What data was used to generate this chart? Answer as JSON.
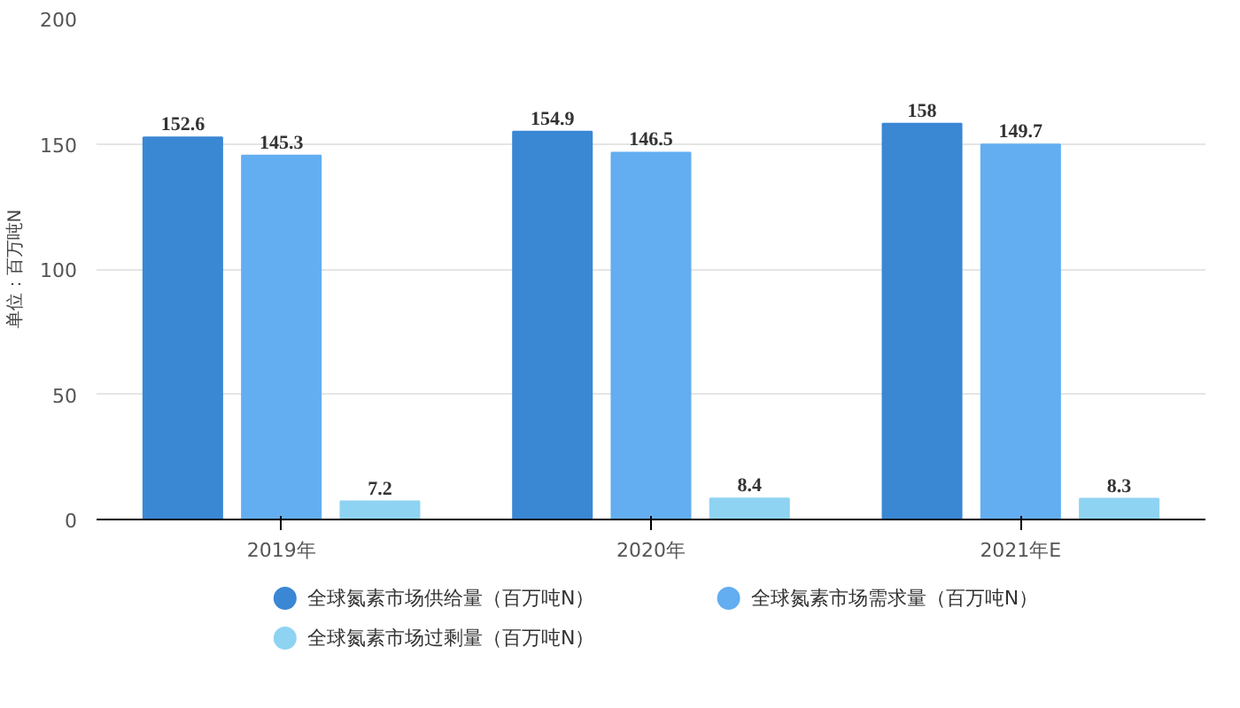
{
  "chart_data": {
    "type": "bar",
    "ylabel": "单位：百万吨N",
    "categories": [
      "2019年",
      "2020年",
      "2021年E"
    ],
    "series": [
      {
        "name": "全球氮素市场供给量（百万吨N）",
        "color": "#3a87d4",
        "values": [
          152.6,
          154.9,
          158
        ]
      },
      {
        "name": "全球氮素市场需求量（百万吨N）",
        "color": "#63aef0",
        "values": [
          145.3,
          146.5,
          149.7
        ]
      },
      {
        "name": "全球氮素市场过剩量（百万吨N）",
        "color": "#8fd3f2",
        "values": [
          7.2,
          8.4,
          8.3
        ]
      }
    ],
    "ylim": [
      0,
      200
    ],
    "yticks": [
      0,
      50,
      100,
      150,
      200
    ],
    "grid": "y",
    "legend": "bottom",
    "data_labels": true
  }
}
